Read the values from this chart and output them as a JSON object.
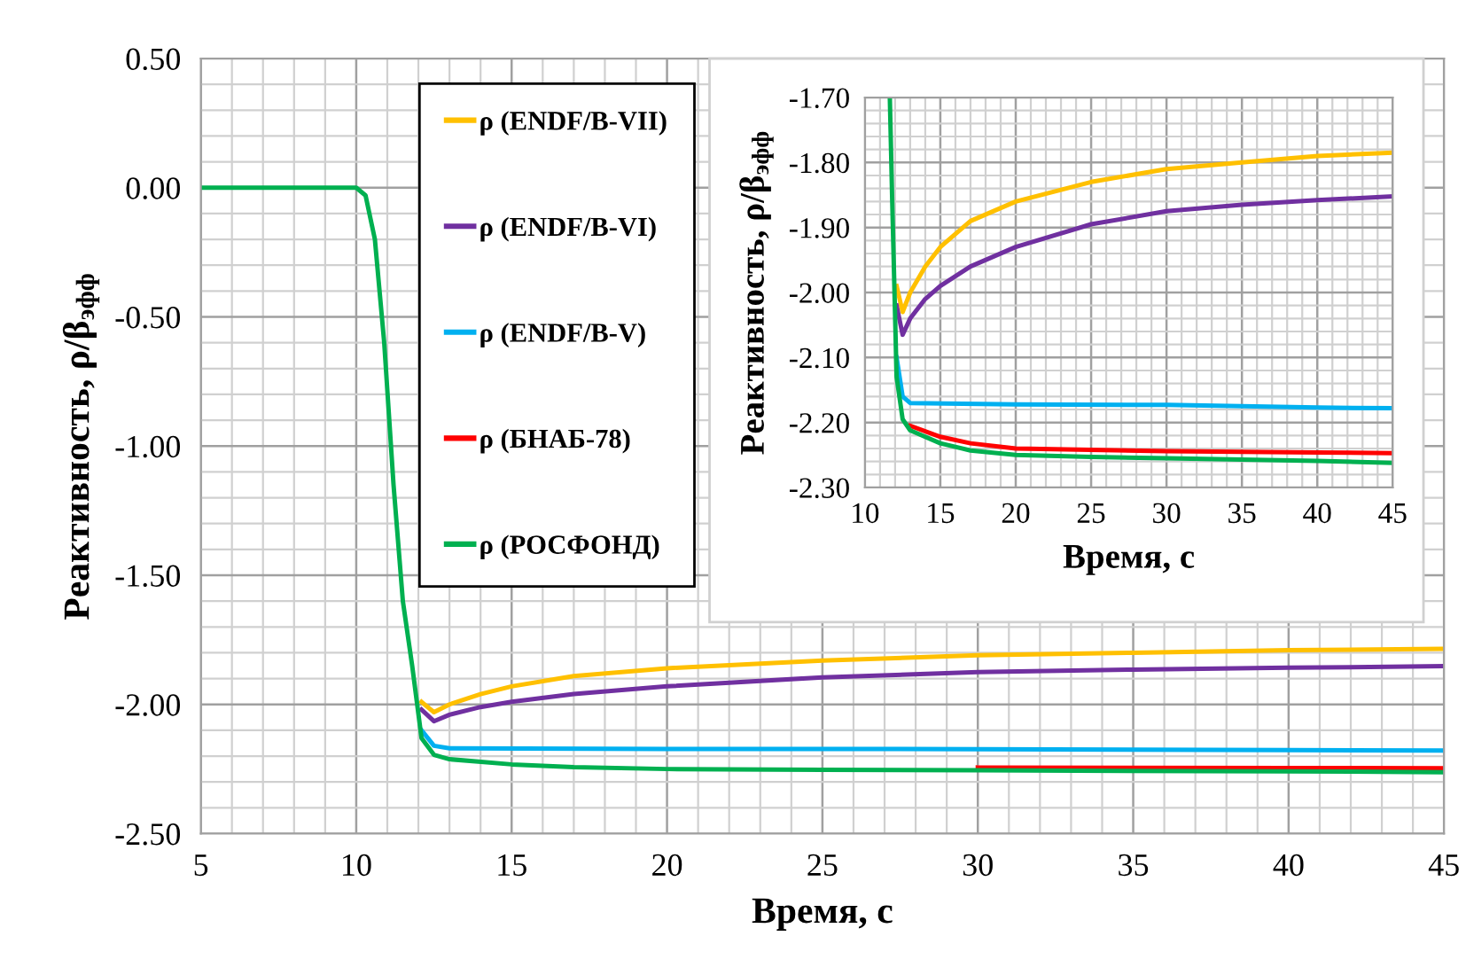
{
  "chart_data": [
    {
      "type": "line",
      "xlabel": "Время, с",
      "ylabel": "Реактивность, ρ/β$_{эфф}$",
      "xlim": [
        5,
        45
      ],
      "xticks": [
        5,
        10,
        15,
        20,
        25,
        30,
        35,
        40,
        45
      ],
      "ylim": [
        -2.5,
        0.5
      ],
      "yticks": [
        {
          "value": -2.5,
          "label": "-2.50"
        },
        {
          "value": -2.0,
          "label": "-2.00"
        },
        {
          "value": -1.5,
          "label": "-1.50"
        },
        {
          "value": -1.0,
          "label": "-1.00"
        },
        {
          "value": -0.5,
          "label": "-0.50"
        },
        {
          "value": 0.0,
          "label": "0.00"
        },
        {
          "value": 0.5,
          "label": "0.50"
        }
      ],
      "grid": true,
      "legend": "top left",
      "marker": "none",
      "line_style": "solid",
      "series": [
        {
          "name": "ρ (ENDF/B-VII)",
          "color": "#ffc000",
          "x": [
            12.1,
            12.5,
            13,
            14,
            15,
            17,
            20,
            25,
            30,
            35,
            40,
            45
          ],
          "values": [
            -1.99,
            -2.03,
            -2.0,
            -1.96,
            -1.93,
            -1.89,
            -1.86,
            -1.83,
            -1.81,
            -1.8,
            -1.79,
            -1.785
          ]
        },
        {
          "name": "ρ (ENDF/B-VI)",
          "color": "#7030a0",
          "x": [
            12.1,
            12.5,
            13,
            14,
            15,
            17,
            20,
            25,
            30,
            35,
            40,
            45
          ],
          "values": [
            -2.02,
            -2.065,
            -2.04,
            -2.01,
            -1.99,
            -1.96,
            -1.93,
            -1.895,
            -1.875,
            -1.865,
            -1.858,
            -1.852
          ]
        },
        {
          "name": "ρ (ENDF/B-V)",
          "color": "#00b0f0",
          "x": [
            12.1,
            12.5,
            13,
            20,
            30,
            40,
            45
          ],
          "values": [
            -2.1,
            -2.16,
            -2.17,
            -2.172,
            -2.173,
            -2.177,
            -2.178
          ]
        },
        {
          "name": "ρ (БНАБ-78)",
          "color": "#ff0000",
          "x": [
            30,
            40,
            45
          ],
          "values": [
            -2.244,
            -2.246,
            -2.247
          ]
        },
        {
          "name": "ρ (РОСФОНД)",
          "color": "#00b050",
          "x": [
            5,
            10,
            10.3,
            10.6,
            10.9,
            11.2,
            11.5,
            11.8,
            12.1,
            12.5,
            13,
            15,
            17,
            20,
            25,
            30,
            40,
            45
          ],
          "values": [
            0,
            0,
            -0.03,
            -0.2,
            -0.6,
            -1.15,
            -1.6,
            -1.85,
            -2.13,
            -2.195,
            -2.212,
            -2.232,
            -2.243,
            -2.25,
            -2.253,
            -2.255,
            -2.259,
            -2.262
          ]
        }
      ]
    },
    {
      "type": "line",
      "xlabel": "Время, с",
      "ylabel": "Реактивность, ρ/β$_{эфф}$",
      "xlim": [
        10,
        45
      ],
      "xticks": [
        10,
        15,
        20,
        25,
        30,
        35,
        40,
        45
      ],
      "ylim": [
        -2.3,
        -1.7
      ],
      "yticks": [
        {
          "value": -2.3,
          "label": "-2.30"
        },
        {
          "value": -2.2,
          "label": "-2.20"
        },
        {
          "value": -2.1,
          "label": "-2.10"
        },
        {
          "value": -2.0,
          "label": "-2.00"
        },
        {
          "value": -1.9,
          "label": "-1.90"
        },
        {
          "value": -1.8,
          "label": "-1.80"
        },
        {
          "value": -1.7,
          "label": "-1.70"
        }
      ],
      "grid": true,
      "marker": "none",
      "line_style": "solid",
      "series": [
        {
          "color": "#ffc000",
          "x": [
            12.1,
            12.5,
            13,
            14,
            15,
            17,
            20,
            25,
            30,
            35,
            40,
            45
          ],
          "values": [
            -1.99,
            -2.03,
            -2.0,
            -1.96,
            -1.93,
            -1.89,
            -1.86,
            -1.83,
            -1.81,
            -1.8,
            -1.79,
            -1.785
          ]
        },
        {
          "color": "#7030a0",
          "x": [
            12.1,
            12.5,
            13,
            14,
            15,
            17,
            20,
            25,
            30,
            35,
            40,
            45
          ],
          "values": [
            -2.02,
            -2.065,
            -2.04,
            -2.01,
            -1.99,
            -1.96,
            -1.93,
            -1.895,
            -1.875,
            -1.865,
            -1.858,
            -1.852
          ]
        },
        {
          "color": "#00b0f0",
          "x": [
            12.1,
            12.5,
            13,
            20,
            30,
            40,
            45
          ],
          "values": [
            -2.1,
            -2.16,
            -2.17,
            -2.172,
            -2.173,
            -2.177,
            -2.178
          ]
        },
        {
          "color": "#ff0000",
          "x": [
            13,
            15,
            17,
            20,
            30,
            40,
            45
          ],
          "values": [
            -2.205,
            -2.222,
            -2.232,
            -2.24,
            -2.244,
            -2.246,
            -2.247
          ]
        },
        {
          "color": "#00b050",
          "x": [
            11.65,
            11.8,
            12.1,
            12.5,
            13,
            15,
            17,
            20,
            25,
            30,
            40,
            45
          ],
          "values": [
            -1.7,
            -1.85,
            -2.13,
            -2.195,
            -2.212,
            -2.232,
            -2.243,
            -2.25,
            -2.253,
            -2.255,
            -2.259,
            -2.262
          ]
        }
      ]
    }
  ]
}
